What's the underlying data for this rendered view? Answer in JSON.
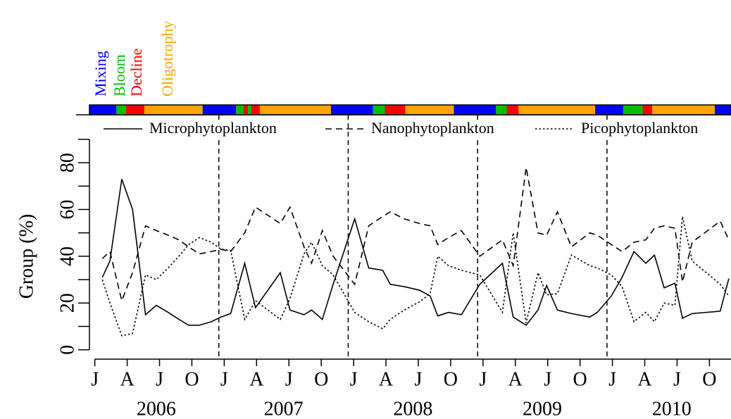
{
  "chart_data": {
    "type": "line",
    "ylabel": "Group (%)",
    "x": [
      0.7,
      1.4,
      2.5,
      3.5,
      4.7,
      5.7,
      6.8,
      7.8,
      8.7,
      9.7,
      10.8,
      11.7,
      12.6,
      13.9,
      14.9,
      17.2,
      18.1,
      19.4,
      20.1,
      21.1,
      22.1,
      24.1,
      25.4,
      26.7,
      27.4,
      28.7,
      30.1,
      31.1,
      31.8,
      32.8,
      34.0,
      35.7,
      37.8,
      38.8,
      40.0,
      41.1,
      41.9,
      42.9,
      44.2,
      45.9,
      46.6,
      47.9,
      48.9,
      50.0,
      51.1,
      51.9,
      52.8,
      53.8,
      54.5,
      55.4,
      58.0,
      58.8
    ],
    "series": [
      {
        "name": "Microphytoplankton",
        "color": "#000000",
        "dash": "solid",
        "values": [
          31,
          38,
          73,
          60,
          15,
          19,
          16,
          13,
          10.5,
          10.5,
          12,
          14,
          15.5,
          37,
          18,
          33,
          17,
          15,
          17,
          13,
          28,
          56,
          35,
          34,
          28,
          27,
          25.5,
          23,
          14.5,
          16,
          15,
          28,
          37,
          14,
          10.5,
          17,
          27.5,
          17,
          15.5,
          14,
          16,
          23,
          31,
          42,
          37,
          40.5,
          26.5,
          28.5,
          13.5,
          15.5,
          16.5,
          30.5
        ]
      },
      {
        "name": "Nanophytoplankton",
        "color": "#000000",
        "dash": "dashed",
        "values": [
          39,
          42,
          21,
          33,
          53,
          51,
          49,
          47,
          44,
          41,
          42,
          43,
          42,
          50,
          61,
          54,
          61,
          44,
          37,
          51,
          40,
          28,
          53,
          57,
          59,
          56,
          54,
          53,
          45,
          48,
          51,
          40,
          47,
          36,
          78,
          50,
          49,
          59,
          44,
          50,
          49,
          45,
          42,
          46,
          47,
          52,
          53,
          52,
          29,
          46,
          55,
          47
        ]
      },
      {
        "name": "Picophytoplankton",
        "color": "#000000",
        "dash": "dotted",
        "values": [
          30,
          20,
          6,
          7,
          32,
          30,
          35,
          40,
          45,
          48,
          46,
          43,
          42.5,
          13,
          21,
          13,
          22,
          41,
          46,
          36,
          32,
          16,
          12,
          9,
          13,
          17,
          20.5,
          24,
          40,
          36,
          34,
          32,
          16,
          50,
          11.5,
          33,
          23.5,
          24,
          40.5,
          36,
          35,
          32,
          27,
          12,
          16,
          12,
          20,
          19,
          57,
          38,
          28,
          23
        ]
      }
    ],
    "xlim": [
      -0.5,
      59
    ],
    "ylim": [
      -4,
      100.5
    ],
    "yticks": [
      0,
      20,
      40,
      60,
      80
    ],
    "yminor_ticks": [
      10,
      30,
      50,
      70,
      90
    ],
    "xticks": [
      {
        "value": 0,
        "label": "J"
      },
      {
        "value": 3,
        "label": "A"
      },
      {
        "value": 6,
        "label": "J"
      },
      {
        "value": 9,
        "label": "O"
      },
      {
        "value": 12,
        "label": "J"
      },
      {
        "value": 15,
        "label": "A"
      },
      {
        "value": 18,
        "label": "J"
      },
      {
        "value": 21,
        "label": "O"
      },
      {
        "value": 24,
        "label": "J"
      },
      {
        "value": 27,
        "label": "A"
      },
      {
        "value": 30,
        "label": "J"
      },
      {
        "value": 33,
        "label": "O"
      },
      {
        "value": 36,
        "label": "J"
      },
      {
        "value": 39,
        "label": "A"
      },
      {
        "value": 42,
        "label": "J"
      },
      {
        "value": 45,
        "label": "O"
      },
      {
        "value": 48,
        "label": "J"
      },
      {
        "value": 51,
        "label": "A"
      },
      {
        "value": 54,
        "label": "J"
      },
      {
        "value": 57,
        "label": "O"
      }
    ],
    "year_labels": [
      {
        "value": 5.7,
        "label": "2006"
      },
      {
        "value": 17.5,
        "label": "2007"
      },
      {
        "value": 29.5,
        "label": "2008"
      },
      {
        "value": 41.5,
        "label": "2009"
      },
      {
        "value": 53.5,
        "label": "2010"
      }
    ],
    "vlines": [
      11.5,
      23.5,
      35.5,
      47.5
    ],
    "legend": "top",
    "phase_legend": [
      {
        "label": "Mixing",
        "color": "#0000ff"
      },
      {
        "label": "Bloom",
        "color": "#00c000"
      },
      {
        "label": "Decline",
        "color": "#ff0000"
      },
      {
        "label": "Oligotrophy",
        "color": "#ffa500"
      }
    ],
    "phase_segments": [
      {
        "start": -0.5,
        "end": 2.0,
        "color": "#0000ff"
      },
      {
        "start": 2.0,
        "end": 2.9,
        "color": "#00c000"
      },
      {
        "start": 2.9,
        "end": 4.6,
        "color": "#ff0000"
      },
      {
        "start": 4.6,
        "end": 10.0,
        "color": "#ffa500"
      },
      {
        "start": 10.0,
        "end": 13.1,
        "color": "#0000ff"
      },
      {
        "start": 13.1,
        "end": 13.8,
        "color": "#00c000"
      },
      {
        "start": 13.8,
        "end": 14.2,
        "color": "#ff0000"
      },
      {
        "start": 14.2,
        "end": 14.5,
        "color": "#00c000"
      },
      {
        "start": 14.5,
        "end": 15.3,
        "color": "#ff0000"
      },
      {
        "start": 15.3,
        "end": 21.9,
        "color": "#ffa500"
      },
      {
        "start": 21.9,
        "end": 25.8,
        "color": "#0000ff"
      },
      {
        "start": 25.8,
        "end": 26.9,
        "color": "#00c000"
      },
      {
        "start": 26.9,
        "end": 28.8,
        "color": "#ff0000"
      },
      {
        "start": 28.8,
        "end": 33.3,
        "color": "#ffa500"
      },
      {
        "start": 33.3,
        "end": 37.2,
        "color": "#0000ff"
      },
      {
        "start": 37.2,
        "end": 38.2,
        "color": "#00c000"
      },
      {
        "start": 38.2,
        "end": 39.3,
        "color": "#ff0000"
      },
      {
        "start": 39.3,
        "end": 46.4,
        "color": "#ffa500"
      },
      {
        "start": 46.4,
        "end": 49.0,
        "color": "#0000ff"
      },
      {
        "start": 49.0,
        "end": 50.8,
        "color": "#00c000"
      },
      {
        "start": 50.8,
        "end": 51.7,
        "color": "#ff0000"
      },
      {
        "start": 51.7,
        "end": 57.5,
        "color": "#ffa500"
      },
      {
        "start": 57.5,
        "end": 59,
        "color": "#0000ff"
      }
    ]
  }
}
